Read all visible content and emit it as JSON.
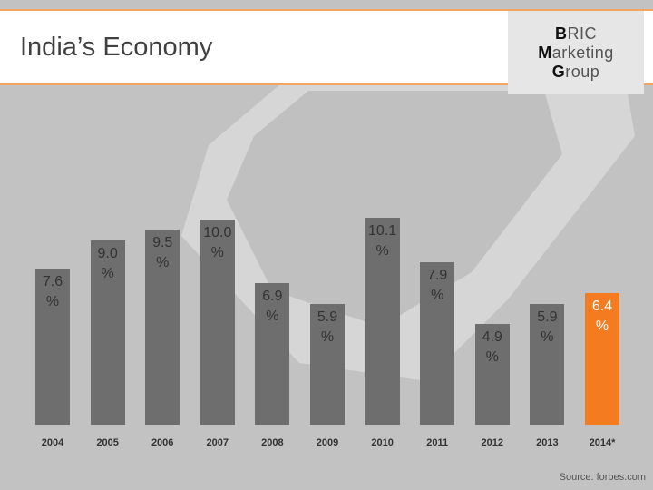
{
  "header": {
    "title": "India’s Economy",
    "logo": [
      "BRIC",
      "Marketing",
      "Group"
    ]
  },
  "chart_data": {
    "type": "bar",
    "categories": [
      "2004",
      "2005",
      "2006",
      "2007",
      "2008",
      "2009",
      "2010",
      "2011",
      "2012",
      "2013",
      "2014*"
    ],
    "values": [
      7.6,
      9.0,
      9.5,
      10.0,
      6.9,
      5.9,
      10.1,
      7.9,
      4.9,
      5.9,
      6.4
    ],
    "value_labels": [
      "7.6 %",
      "9.0 %",
      "9.5 %",
      "10.0 %",
      "6.9 %",
      "5.9 %",
      "10.1 %",
      "7.9 %",
      "4.9 %",
      "5.9 %",
      "6.4 %"
    ],
    "colors": [
      "#6e6e6e",
      "#6e6e6e",
      "#6e6e6e",
      "#6e6e6e",
      "#6e6e6e",
      "#6e6e6e",
      "#6e6e6e",
      "#6e6e6e",
      "#6e6e6e",
      "#6e6e6e",
      "#f47b20"
    ]
  },
  "footer": {
    "source": "Source: forbes.com"
  }
}
